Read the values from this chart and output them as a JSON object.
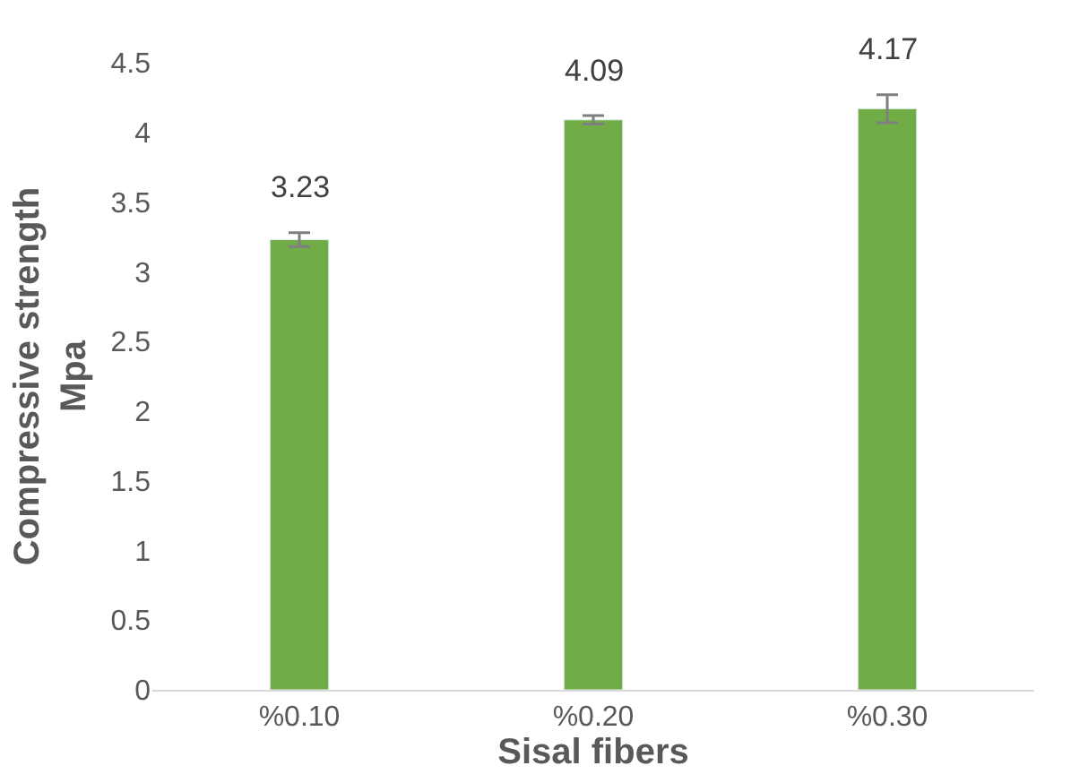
{
  "chart_data": {
    "type": "bar",
    "xlabel": "Sisal fibers",
    "ylabel": "Compressive strength\nMpa",
    "categories": [
      "%0.10",
      "%0.20",
      "%0.30"
    ],
    "values": [
      3.23,
      4.09,
      4.17
    ],
    "errors": [
      0.05,
      0.03,
      0.1
    ],
    "color": "#70ad47",
    "ylim": [
      0,
      4.5
    ],
    "yticks": [
      0,
      0.5,
      1,
      1.5,
      2,
      2.5,
      3,
      3.5,
      4,
      4.5
    ],
    "data_labels": true
  }
}
